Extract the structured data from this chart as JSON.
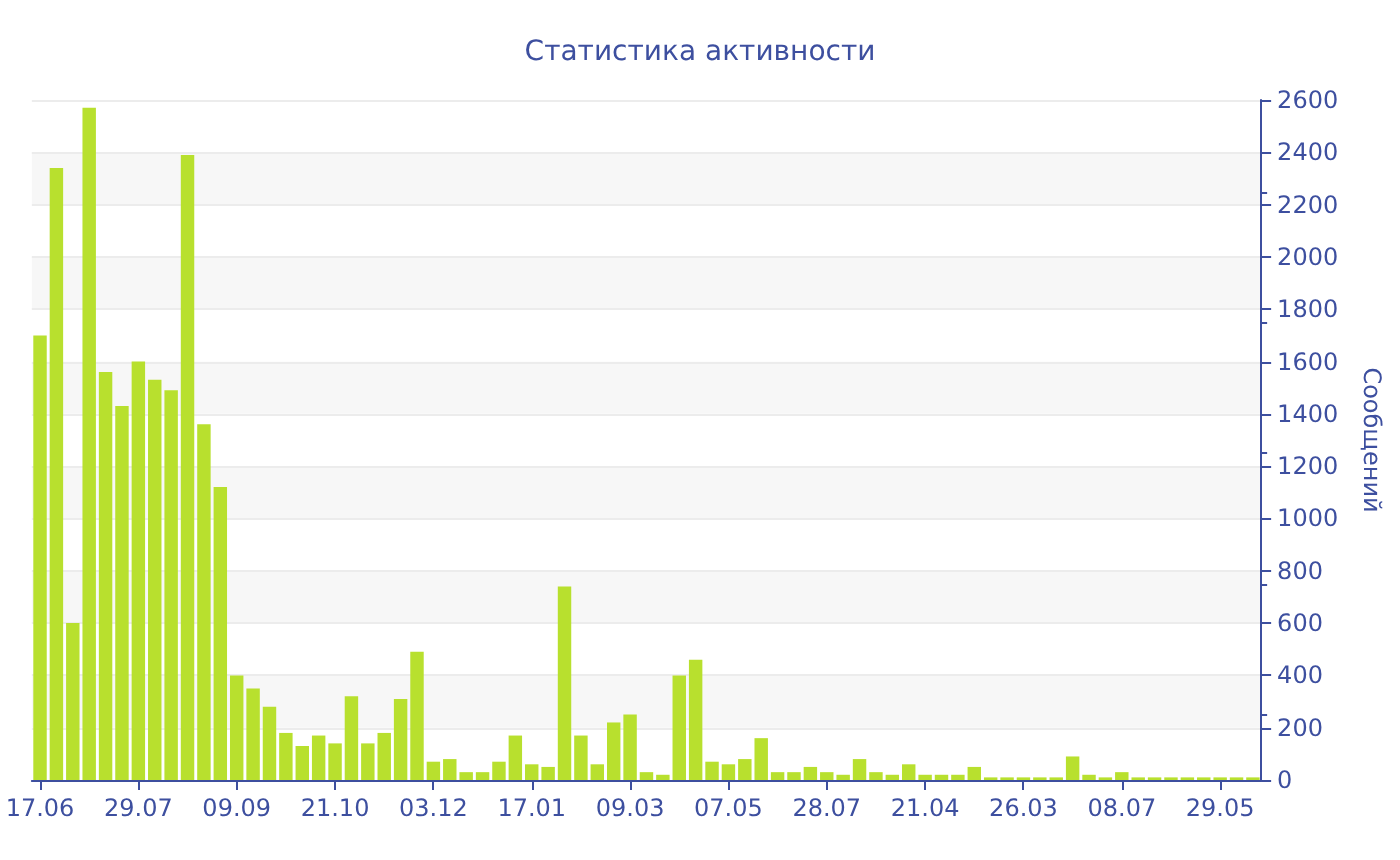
{
  "chart_data": {
    "type": "bar",
    "title": "Статистика активности",
    "ylabel": "Сообщений",
    "categories": [
      "17.06",
      null,
      null,
      null,
      null,
      null,
      "29.07",
      null,
      null,
      null,
      null,
      null,
      "09.09",
      null,
      null,
      null,
      null,
      null,
      "21.10",
      null,
      null,
      null,
      null,
      null,
      "03.12",
      null,
      null,
      null,
      null,
      null,
      "17.01",
      null,
      null,
      null,
      null,
      null,
      "09.03",
      null,
      null,
      null,
      null,
      null,
      "07.05",
      null,
      null,
      null,
      null,
      null,
      "28.07",
      null,
      null,
      null,
      null,
      null,
      "21.04",
      null,
      null,
      null,
      null,
      null,
      "26.03",
      null,
      null,
      null,
      null,
      null,
      "08.07",
      null,
      null,
      null,
      null,
      null,
      "29.05",
      null,
      null
    ],
    "values": [
      1700,
      2340,
      600,
      2570,
      1560,
      1430,
      1600,
      1530,
      1490,
      2390,
      1360,
      1120,
      400,
      350,
      280,
      180,
      130,
      170,
      140,
      320,
      140,
      180,
      310,
      490,
      70,
      80,
      30,
      30,
      70,
      170,
      60,
      50,
      740,
      170,
      60,
      220,
      250,
      30,
      20,
      400,
      460,
      70,
      60,
      80,
      160,
      30,
      30,
      50,
      30,
      20,
      80,
      30,
      20,
      60,
      20,
      20,
      20,
      50,
      10,
      10,
      10,
      10,
      10,
      90,
      20,
      10,
      30,
      10,
      10,
      10,
      10,
      10,
      10,
      10,
      10
    ],
    "color": "#b8e02e",
    "ylim": [
      0,
      2600
    ],
    "yticks": [
      0,
      200,
      400,
      600,
      800,
      1000,
      1200,
      1400,
      1600,
      1800,
      2000,
      2200,
      2400,
      2600
    ],
    "grid": "y"
  }
}
